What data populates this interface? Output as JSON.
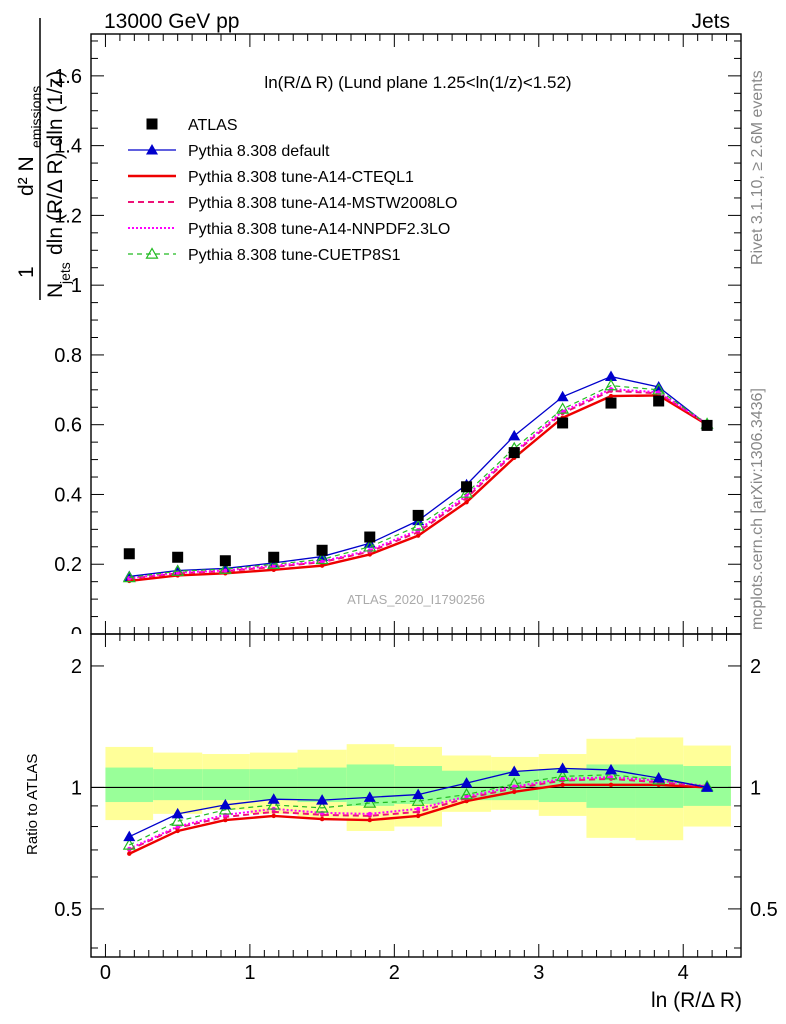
{
  "header": {
    "energy_label": "13000 GeV pp",
    "process_label": "Jets"
  },
  "side_labels": {
    "rivet": "Rivet 3.1.10, ≥ 2.6M events",
    "source": "mcplots.cern.ch [arXiv:1306.3436]"
  },
  "chart_data": [
    {
      "type": "scatter",
      "title": "ln(R/Δ R) (Lund plane 1.25<ln(1/z)<1.52)",
      "watermark": "ATLAS_2020_I1790256",
      "xlabel": "ln (R/Δ R)",
      "ylabel": "(1/N_jets) d²N_emissions / (dln(R/ΔR) dln(1/z))",
      "ylabel_parts": {
        "one": "1",
        "njets": "N",
        "njets_sub": "jets",
        "den_rest": "dln (R/Δ R) dln (1/z)",
        "num": "d² N",
        "num_sub": "emissions"
      },
      "xlim": [
        -0.1,
        4.4
      ],
      "ylim": [
        0,
        1.72
      ],
      "yticks": [
        "0.2",
        "0.4",
        "0.6",
        "0.8",
        "1",
        "1.2",
        "1.4",
        "1.6"
      ],
      "top_tick_partial": "0",
      "x": [
        0.165,
        0.5,
        0.83,
        1.165,
        1.5,
        1.83,
        2.165,
        2.5,
        2.83,
        3.165,
        3.5,
        3.83,
        4.165
      ],
      "series": [
        {
          "name": "ATLAS",
          "color": "#000000",
          "style": "marker-square",
          "values": [
            0.23,
            0.22,
            0.21,
            0.22,
            0.24,
            0.278,
            0.34,
            0.422,
            0.52,
            0.605,
            0.662,
            0.668,
            0.598
          ]
        },
        {
          "name": "Pythia 8.308 default",
          "color": "#0000cc",
          "style": "solid-triangle",
          "values": [
            0.165,
            0.182,
            0.188,
            0.204,
            0.222,
            0.26,
            0.325,
            0.428,
            0.568,
            0.68,
            0.738,
            0.708,
            0.6
          ]
        },
        {
          "name": "Pythia 8.308 tune-A14-CTEQL1",
          "color": "#ee0000",
          "style": "solid-thick",
          "values": [
            0.152,
            0.168,
            0.174,
            0.184,
            0.196,
            0.228,
            0.282,
            0.378,
            0.505,
            0.62,
            0.682,
            0.684,
            0.6
          ]
        },
        {
          "name": "Pythia 8.308 tune-A14-MSTW2008LO",
          "color": "#ee1177",
          "style": "dashed",
          "values": [
            0.158,
            0.174,
            0.18,
            0.192,
            0.206,
            0.236,
            0.292,
            0.39,
            0.518,
            0.633,
            0.697,
            0.69,
            0.602
          ]
        },
        {
          "name": "Pythia 8.308 tune-A14-NNPDF2.3LO",
          "color": "#ff00ff",
          "style": "dotted",
          "values": [
            0.16,
            0.176,
            0.182,
            0.196,
            0.208,
            0.24,
            0.298,
            0.396,
            0.522,
            0.638,
            0.702,
            0.693,
            0.603
          ]
        },
        {
          "name": "Pythia 8.308 tune-CUETP8S1",
          "color": "#22bb22",
          "style": "dashed-open-triangle",
          "values": [
            0.162,
            0.18,
            0.186,
            0.2,
            0.214,
            0.25,
            0.31,
            0.404,
            0.532,
            0.645,
            0.712,
            0.7,
            0.602
          ]
        }
      ]
    },
    {
      "type": "line",
      "ylabel": "Ratio to ATLAS",
      "xlabel": "ln (R/Δ R)",
      "xlim": [
        -0.1,
        4.4
      ],
      "ylim": [
        0.38,
        2.4
      ],
      "log_scale_y": true,
      "xticks": [
        "0",
        "1",
        "2",
        "3",
        "4"
      ],
      "yticks": [
        "0.5",
        "1",
        "2"
      ],
      "x": [
        0.165,
        0.5,
        0.83,
        1.165,
        1.5,
        1.83,
        2.165,
        2.5,
        2.83,
        3.165,
        3.5,
        3.83,
        4.165
      ],
      "bands": {
        "bins": [
          [
            0,
            0.33
          ],
          [
            0.33,
            0.67
          ],
          [
            0.67,
            1.0
          ],
          [
            1.0,
            1.33
          ],
          [
            1.33,
            1.67
          ],
          [
            1.67,
            2.0
          ],
          [
            2.0,
            2.33
          ],
          [
            2.33,
            2.67
          ],
          [
            2.67,
            3.0
          ],
          [
            3.0,
            3.33
          ],
          [
            3.33,
            3.67
          ],
          [
            3.67,
            4.0
          ],
          [
            4.0,
            4.33
          ]
        ],
        "outer_color": "#ffff99",
        "inner_color": "#99ff99",
        "outer": [
          [
            0.83,
            1.26
          ],
          [
            0.86,
            1.22
          ],
          [
            0.88,
            1.21
          ],
          [
            0.86,
            1.22
          ],
          [
            0.84,
            1.24
          ],
          [
            0.78,
            1.28
          ],
          [
            0.8,
            1.26
          ],
          [
            0.87,
            1.2
          ],
          [
            0.88,
            1.19
          ],
          [
            0.85,
            1.21
          ],
          [
            0.75,
            1.32
          ],
          [
            0.74,
            1.33
          ],
          [
            0.8,
            1.27
          ]
        ],
        "inner": [
          [
            0.92,
            1.12
          ],
          [
            0.93,
            1.11
          ],
          [
            0.93,
            1.11
          ],
          [
            0.93,
            1.11
          ],
          [
            0.92,
            1.12
          ],
          [
            0.9,
            1.14
          ],
          [
            0.91,
            1.13
          ],
          [
            0.93,
            1.1
          ],
          [
            0.93,
            1.1
          ],
          [
            0.92,
            1.11
          ],
          [
            0.89,
            1.14
          ],
          [
            0.89,
            1.14
          ],
          [
            0.9,
            1.13
          ]
        ]
      },
      "series": [
        {
          "name": "Pythia 8.308 default",
          "color": "#0000cc",
          "style": "solid-triangle",
          "values": [
            0.755,
            0.86,
            0.905,
            0.935,
            0.93,
            0.945,
            0.96,
            1.025,
            1.095,
            1.115,
            1.105,
            1.055,
            1.0
          ]
        },
        {
          "name": "Pythia 8.308 tune-A14-CTEQL1",
          "color": "#ee0000",
          "style": "solid-thick",
          "values": [
            0.685,
            0.78,
            0.83,
            0.85,
            0.835,
            0.83,
            0.85,
            0.925,
            0.975,
            1.015,
            1.015,
            1.015,
            1.0
          ]
        },
        {
          "name": "Pythia 8.308 tune-A14-MSTW2008LO",
          "color": "#ee1177",
          "style": "dashed",
          "values": [
            0.7,
            0.795,
            0.845,
            0.87,
            0.855,
            0.85,
            0.87,
            0.94,
            0.995,
            1.04,
            1.05,
            1.03,
            1.005
          ]
        },
        {
          "name": "Pythia 8.308 tune-A14-NNPDF2.3LO",
          "color": "#ff00ff",
          "style": "dotted",
          "values": [
            0.705,
            0.8,
            0.855,
            0.885,
            0.865,
            0.86,
            0.885,
            0.95,
            1.005,
            1.05,
            1.06,
            1.04,
            1.008
          ]
        },
        {
          "name": "Pythia 8.308 tune-CUETP8S1",
          "color": "#22bb22",
          "style": "dashed-open-triangle",
          "values": [
            0.72,
            0.825,
            0.88,
            0.905,
            0.89,
            0.915,
            0.925,
            0.96,
            1.02,
            1.065,
            1.075,
            1.045,
            1.005
          ]
        }
      ]
    }
  ]
}
